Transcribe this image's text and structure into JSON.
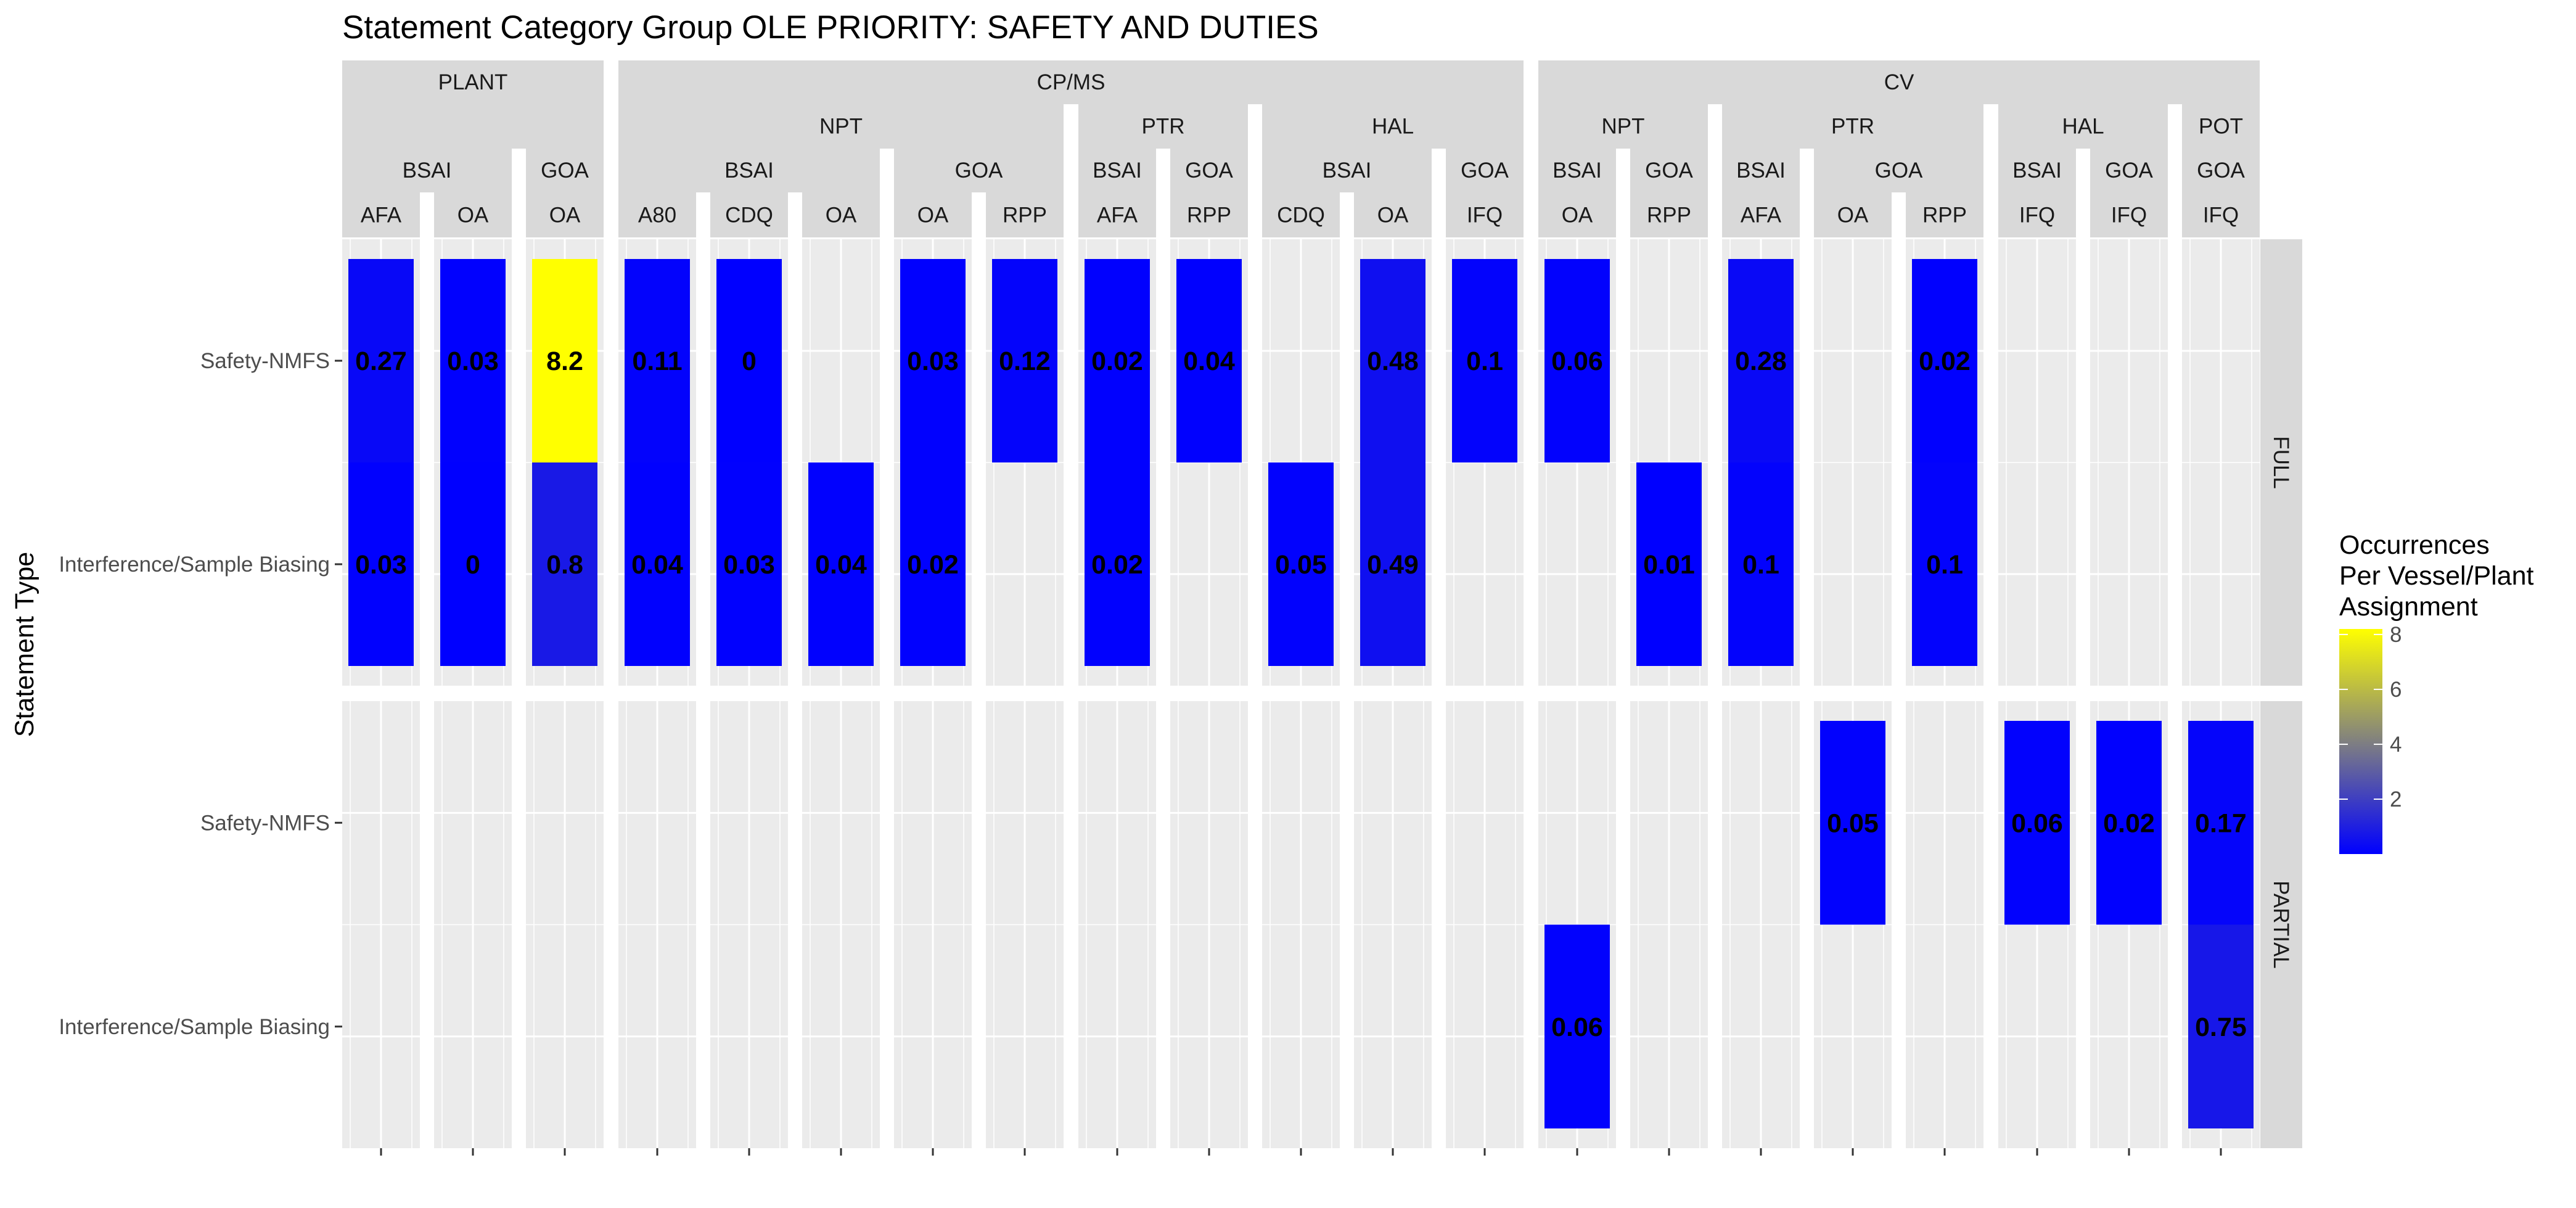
{
  "chart_data": {
    "type": "heatmap",
    "title": "Statement Category Group OLE PRIORITY: SAFETY AND DUTIES",
    "ylabel": "Statement Type",
    "legend": {
      "title_lines": [
        "Occurrences",
        "Per Vessel/Plant",
        "Assignment"
      ],
      "ticks": [
        "8",
        "6",
        "4",
        "2"
      ],
      "tick_values": [
        8,
        6,
        4,
        2
      ],
      "range": [
        0,
        8.2
      ],
      "colors": {
        "low": "#0000FF",
        "high": "#FFFF00"
      },
      "placement": "right"
    },
    "y_categories": [
      "Safety-NMFS",
      "Interference/Sample Biasing"
    ],
    "row_facets": [
      "FULL",
      "PARTIAL"
    ],
    "facet_levels": [
      [
        "PLANT",
        "CP/MS",
        "CV"
      ],
      [
        "NPT",
        "PTR",
        "HAL",
        "POT"
      ],
      [
        "BSAI",
        "GOA"
      ]
    ],
    "panels": [
      {
        "l1": "PLANT",
        "l2": "",
        "l3": "BSAI",
        "l4": "AFA"
      },
      {
        "l1": "PLANT",
        "l2": "",
        "l3": "BSAI",
        "l4": "OA"
      },
      {
        "l1": "PLANT",
        "l2": "",
        "l3": "GOA",
        "l4": "OA"
      },
      {
        "l1": "CP/MS",
        "l2": "NPT",
        "l3": "BSAI",
        "l4": "A80"
      },
      {
        "l1": "CP/MS",
        "l2": "NPT",
        "l3": "BSAI",
        "l4": "CDQ"
      },
      {
        "l1": "CP/MS",
        "l2": "NPT",
        "l3": "BSAI",
        "l4": "OA"
      },
      {
        "l1": "CP/MS",
        "l2": "NPT",
        "l3": "GOA",
        "l4": "OA"
      },
      {
        "l1": "CP/MS",
        "l2": "NPT",
        "l3": "GOA",
        "l4": "RPP"
      },
      {
        "l1": "CP/MS",
        "l2": "PTR",
        "l3": "BSAI",
        "l4": "AFA"
      },
      {
        "l1": "CP/MS",
        "l2": "PTR",
        "l3": "GOA",
        "l4": "RPP"
      },
      {
        "l1": "CP/MS",
        "l2": "HAL",
        "l3": "BSAI",
        "l4": "CDQ"
      },
      {
        "l1": "CP/MS",
        "l2": "HAL",
        "l3": "BSAI",
        "l4": "OA"
      },
      {
        "l1": "CP/MS",
        "l2": "HAL",
        "l3": "GOA",
        "l4": "IFQ"
      },
      {
        "l1": "CV",
        "l2": "NPT",
        "l3": "BSAI",
        "l4": "OA"
      },
      {
        "l1": "CV",
        "l2": "NPT",
        "l3": "GOA",
        "l4": "RPP"
      },
      {
        "l1": "CV",
        "l2": "PTR",
        "l3": "BSAI",
        "l4": "AFA"
      },
      {
        "l1": "CV",
        "l2": "PTR",
        "l3": "GOA",
        "l4": "OA"
      },
      {
        "l1": "CV",
        "l2": "PTR",
        "l3": "GOA",
        "l4": "RPP"
      },
      {
        "l1": "CV",
        "l2": "HAL",
        "l3": "BSAI",
        "l4": "IFQ"
      },
      {
        "l1": "CV",
        "l2": "HAL",
        "l3": "GOA",
        "l4": "IFQ"
      },
      {
        "l1": "CV",
        "l2": "POT",
        "l3": "GOA",
        "l4": "IFQ"
      }
    ],
    "cells": [
      {
        "panel": 0,
        "row": "FULL",
        "y": "Safety-NMFS",
        "value": 0.27,
        "label": "0.27"
      },
      {
        "panel": 0,
        "row": "FULL",
        "y": "Interference/Sample Biasing",
        "value": 0.03,
        "label": "0.03"
      },
      {
        "panel": 1,
        "row": "FULL",
        "y": "Safety-NMFS",
        "value": 0.03,
        "label": "0.03"
      },
      {
        "panel": 1,
        "row": "FULL",
        "y": "Interference/Sample Biasing",
        "value": 0,
        "label": "0"
      },
      {
        "panel": 2,
        "row": "FULL",
        "y": "Safety-NMFS",
        "value": 8.2,
        "label": "8.2"
      },
      {
        "panel": 2,
        "row": "FULL",
        "y": "Interference/Sample Biasing",
        "value": 0.8,
        "label": "0.8"
      },
      {
        "panel": 3,
        "row": "FULL",
        "y": "Safety-NMFS",
        "value": 0.11,
        "label": "0.11"
      },
      {
        "panel": 3,
        "row": "FULL",
        "y": "Interference/Sample Biasing",
        "value": 0.04,
        "label": "0.04"
      },
      {
        "panel": 4,
        "row": "FULL",
        "y": "Safety-NMFS",
        "value": 0,
        "label": "0"
      },
      {
        "panel": 4,
        "row": "FULL",
        "y": "Interference/Sample Biasing",
        "value": 0.03,
        "label": "0.03"
      },
      {
        "panel": 5,
        "row": "FULL",
        "y": "Interference/Sample Biasing",
        "value": 0.04,
        "label": "0.04"
      },
      {
        "panel": 6,
        "row": "FULL",
        "y": "Safety-NMFS",
        "value": 0.03,
        "label": "0.03"
      },
      {
        "panel": 6,
        "row": "FULL",
        "y": "Interference/Sample Biasing",
        "value": 0.02,
        "label": "0.02"
      },
      {
        "panel": 7,
        "row": "FULL",
        "y": "Safety-NMFS",
        "value": 0.12,
        "label": "0.12"
      },
      {
        "panel": 8,
        "row": "FULL",
        "y": "Safety-NMFS",
        "value": 0.02,
        "label": "0.02"
      },
      {
        "panel": 8,
        "row": "FULL",
        "y": "Interference/Sample Biasing",
        "value": 0.02,
        "label": "0.02"
      },
      {
        "panel": 9,
        "row": "FULL",
        "y": "Safety-NMFS",
        "value": 0.04,
        "label": "0.04"
      },
      {
        "panel": 10,
        "row": "FULL",
        "y": "Interference/Sample Biasing",
        "value": 0.05,
        "label": "0.05"
      },
      {
        "panel": 11,
        "row": "FULL",
        "y": "Safety-NMFS",
        "value": 0.48,
        "label": "0.48"
      },
      {
        "panel": 11,
        "row": "FULL",
        "y": "Interference/Sample Biasing",
        "value": 0.49,
        "label": "0.49"
      },
      {
        "panel": 12,
        "row": "FULL",
        "y": "Safety-NMFS",
        "value": 0.1,
        "label": "0.1"
      },
      {
        "panel": 13,
        "row": "FULL",
        "y": "Safety-NMFS",
        "value": 0.06,
        "label": "0.06"
      },
      {
        "panel": 14,
        "row": "FULL",
        "y": "Interference/Sample Biasing",
        "value": 0.01,
        "label": "0.01"
      },
      {
        "panel": 15,
        "row": "FULL",
        "y": "Safety-NMFS",
        "value": 0.28,
        "label": "0.28"
      },
      {
        "panel": 15,
        "row": "FULL",
        "y": "Interference/Sample Biasing",
        "value": 0.1,
        "label": "0.1"
      },
      {
        "panel": 17,
        "row": "FULL",
        "y": "Safety-NMFS",
        "value": 0.02,
        "label": "0.02"
      },
      {
        "panel": 17,
        "row": "FULL",
        "y": "Interference/Sample Biasing",
        "value": 0.1,
        "label": "0.1"
      },
      {
        "panel": 13,
        "row": "PARTIAL",
        "y": "Interference/Sample Biasing",
        "value": 0.06,
        "label": "0.06"
      },
      {
        "panel": 16,
        "row": "PARTIAL",
        "y": "Safety-NMFS",
        "value": 0.05,
        "label": "0.05"
      },
      {
        "panel": 18,
        "row": "PARTIAL",
        "y": "Safety-NMFS",
        "value": 0.06,
        "label": "0.06"
      },
      {
        "panel": 19,
        "row": "PARTIAL",
        "y": "Safety-NMFS",
        "value": 0.02,
        "label": "0.02"
      },
      {
        "panel": 20,
        "row": "PARTIAL",
        "y": "Safety-NMFS",
        "value": 0.17,
        "label": "0.17"
      },
      {
        "panel": 20,
        "row": "PARTIAL",
        "y": "Interference/Sample Biasing",
        "value": 0.75,
        "label": "0.75"
      }
    ]
  }
}
